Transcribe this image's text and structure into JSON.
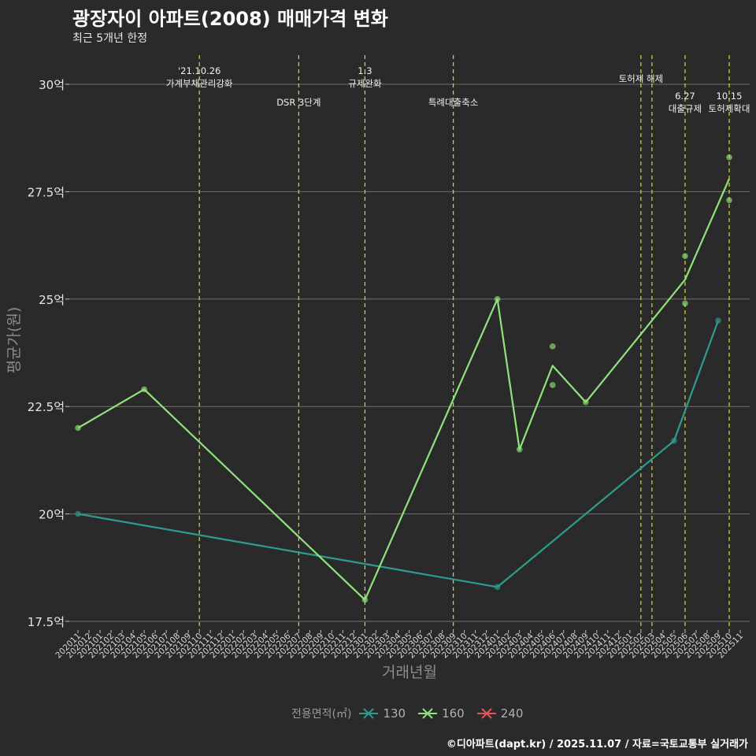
{
  "title": "광장자이 아파트(2008) 매매가격 변화",
  "subtitle": "최근 5개년 한정",
  "caption": "©디아파트(dapt.kr) / 2025.11.07 / 자료=국토교통부 실거래가",
  "colors": {
    "background": "#2b2a2b",
    "grid": "#6e6e6e",
    "event_line": "#d4e021",
    "s130": "#2a9d8f",
    "s160": "#8fe37a",
    "s240": "#e0545a"
  },
  "chart_data": {
    "type": "line",
    "xlabel": "거래년월",
    "ylabel": "평균가(원)",
    "ylim": [
      17.5,
      30.5
    ],
    "yticks": [
      17.5,
      20,
      22.5,
      25,
      27.5,
      30
    ],
    "ytick_labels": [
      "17.5억",
      "20억",
      "22.5억",
      "25억",
      "27.5억",
      "30억"
    ],
    "categories": [
      "202011",
      "202012",
      "202101",
      "202102",
      "202103",
      "202104",
      "202105",
      "202106",
      "202107",
      "202108",
      "202109",
      "202110",
      "202111",
      "202112",
      "202201",
      "202202",
      "202203",
      "202204",
      "202205",
      "202206",
      "202207",
      "202208",
      "202209",
      "202210",
      "202211",
      "202212",
      "202301",
      "202302",
      "202303",
      "202304",
      "202305",
      "202306",
      "202307",
      "202308",
      "202309",
      "202310",
      "202311",
      "202312",
      "202401",
      "202402",
      "202403",
      "202404",
      "202405",
      "202406",
      "202407",
      "202408",
      "202409",
      "202410",
      "202411",
      "202412",
      "202501",
      "202502",
      "202503",
      "202504",
      "202505",
      "202506",
      "202507",
      "202508",
      "202509",
      "202510",
      "202511"
    ],
    "legend_title": "전용면적(㎡)",
    "series": [
      {
        "name": "130",
        "color": "#2a9d8f",
        "line": [
          [
            "202011",
            20.0
          ],
          [
            "202401",
            18.3
          ],
          [
            "202505",
            21.7
          ],
          [
            "202509",
            24.5
          ]
        ],
        "points": [
          [
            "202011",
            20.0
          ],
          [
            "202401",
            18.3
          ],
          [
            "202505",
            21.7
          ],
          [
            "202509",
            24.5
          ]
        ]
      },
      {
        "name": "160",
        "color": "#8fe37a",
        "line": [
          [
            "202011",
            22.0
          ],
          [
            "202105",
            22.9
          ],
          [
            "202301",
            18.0
          ],
          [
            "202401",
            25.0
          ],
          [
            "202403",
            21.5
          ],
          [
            "202406",
            23.45
          ],
          [
            "202409",
            22.6
          ],
          [
            "202506",
            25.45
          ],
          [
            "202510",
            27.8
          ]
        ],
        "points": [
          [
            "202011",
            22.0
          ],
          [
            "202105",
            22.9
          ],
          [
            "202301",
            18.0
          ],
          [
            "202401",
            25.0
          ],
          [
            "202403",
            21.5
          ],
          [
            "202406",
            23.9
          ],
          [
            "202406",
            23.0
          ],
          [
            "202409",
            22.6
          ],
          [
            "202506",
            26.0
          ],
          [
            "202506",
            24.9
          ],
          [
            "202510",
            28.3
          ],
          [
            "202510",
            27.3
          ]
        ]
      },
      {
        "name": "240",
        "color": "#e0545a",
        "line": [],
        "points": []
      }
    ],
    "events": [
      {
        "month": "202110",
        "lines": [
          "'21.10.26",
          "가계부채관리강화"
        ],
        "row": 0
      },
      {
        "month": "202207",
        "lines": [
          "DSR 3단계"
        ],
        "row": 2
      },
      {
        "month": "202301",
        "lines": [
          "1.3",
          "규제완화"
        ],
        "row": 0
      },
      {
        "month": "202309",
        "lines": [
          "특례대출축소"
        ],
        "row": 2
      },
      {
        "month": "202502",
        "lines": [
          "토허제 해제"
        ],
        "row": 1
      },
      {
        "month": "202503",
        "lines": [],
        "row": 1
      },
      {
        "month": "202506",
        "lines": [
          "6.27",
          "대출규제"
        ],
        "row": 3
      },
      {
        "month": "202510",
        "lines": [
          "10.15",
          "토허제확대"
        ],
        "row": 3
      }
    ]
  }
}
